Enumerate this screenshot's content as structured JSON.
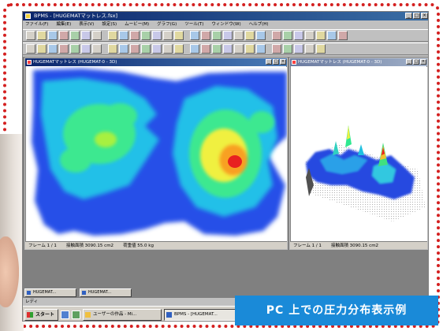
{
  "window": {
    "title": "BPMS - [HUGEMATマットレス.fsx]"
  },
  "menu": [
    "ファイル(F)",
    "編集(E)",
    "表示(V)",
    "設定(S)",
    "ムービー(M)",
    "グラフ(G)",
    "ツール(T)",
    "ウィンドウ(W)",
    "ヘルプ(H)"
  ],
  "toolbar1_count": 28,
  "toolbar2_count": 26,
  "view2d": {
    "title": "HUGEMATマットレス (HUGEMAT-0 - 3D)",
    "status_frame": "フレーム 1 / 1",
    "status_area": "接触面積  3090.15 cm2",
    "status_load": "荷重値  55.0 kg"
  },
  "view3d": {
    "title": "HUGEMATマットレス (HUGEMAT-0 - 3D)",
    "status_frame": "フレーム 1 / 1",
    "status_area": "接触面積  3090.15 cm2"
  },
  "minimized": [
    {
      "label": "HUGEMAT..."
    },
    {
      "label": "HUGEMAT..."
    }
  ],
  "app_status": "レディ",
  "taskbar": {
    "start": "スタート",
    "tasks": [
      {
        "label": "ユーザーの作品 - Mi..."
      },
      {
        "label": "BPMS - [HUGEMAT..."
      }
    ]
  },
  "caption": "PC 上での圧力分布表示例",
  "colors": {
    "accent": "#1a8ad8",
    "border": "#d42020"
  }
}
